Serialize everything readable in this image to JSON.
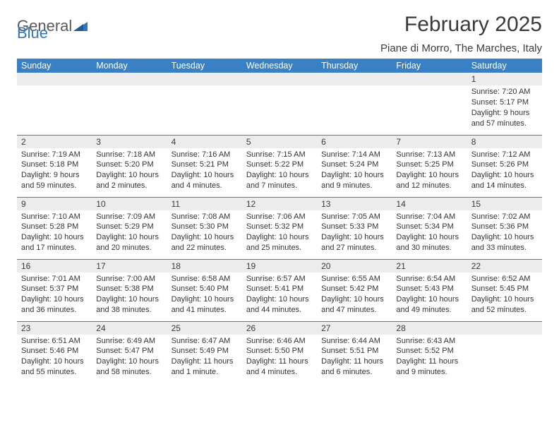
{
  "logo": {
    "text_part1": "General",
    "text_part2": "Blue",
    "gray_color": "#5a5a5a",
    "blue_color": "#2f78bd"
  },
  "header": {
    "title": "February 2025",
    "subtitle": "Piane di Morro, The Marches, Italy"
  },
  "colors": {
    "header_bg": "#3a80c4",
    "header_text": "#ffffff",
    "daybar_bg": "#ececec",
    "text": "#333333",
    "border": "#3a80c4",
    "page_bg": "#ffffff"
  },
  "weekdays": [
    "Sunday",
    "Monday",
    "Tuesday",
    "Wednesday",
    "Thursday",
    "Friday",
    "Saturday"
  ],
  "weeks": [
    [
      null,
      null,
      null,
      null,
      null,
      null,
      {
        "n": "1",
        "sr": "Sunrise: 7:20 AM",
        "ss": "Sunset: 5:17 PM",
        "dl1": "Daylight: 9 hours",
        "dl2": "and 57 minutes."
      }
    ],
    [
      {
        "n": "2",
        "sr": "Sunrise: 7:19 AM",
        "ss": "Sunset: 5:18 PM",
        "dl1": "Daylight: 9 hours",
        "dl2": "and 59 minutes."
      },
      {
        "n": "3",
        "sr": "Sunrise: 7:18 AM",
        "ss": "Sunset: 5:20 PM",
        "dl1": "Daylight: 10 hours",
        "dl2": "and 2 minutes."
      },
      {
        "n": "4",
        "sr": "Sunrise: 7:16 AM",
        "ss": "Sunset: 5:21 PM",
        "dl1": "Daylight: 10 hours",
        "dl2": "and 4 minutes."
      },
      {
        "n": "5",
        "sr": "Sunrise: 7:15 AM",
        "ss": "Sunset: 5:22 PM",
        "dl1": "Daylight: 10 hours",
        "dl2": "and 7 minutes."
      },
      {
        "n": "6",
        "sr": "Sunrise: 7:14 AM",
        "ss": "Sunset: 5:24 PM",
        "dl1": "Daylight: 10 hours",
        "dl2": "and 9 minutes."
      },
      {
        "n": "7",
        "sr": "Sunrise: 7:13 AM",
        "ss": "Sunset: 5:25 PM",
        "dl1": "Daylight: 10 hours",
        "dl2": "and 12 minutes."
      },
      {
        "n": "8",
        "sr": "Sunrise: 7:12 AM",
        "ss": "Sunset: 5:26 PM",
        "dl1": "Daylight: 10 hours",
        "dl2": "and 14 minutes."
      }
    ],
    [
      {
        "n": "9",
        "sr": "Sunrise: 7:10 AM",
        "ss": "Sunset: 5:28 PM",
        "dl1": "Daylight: 10 hours",
        "dl2": "and 17 minutes."
      },
      {
        "n": "10",
        "sr": "Sunrise: 7:09 AM",
        "ss": "Sunset: 5:29 PM",
        "dl1": "Daylight: 10 hours",
        "dl2": "and 20 minutes."
      },
      {
        "n": "11",
        "sr": "Sunrise: 7:08 AM",
        "ss": "Sunset: 5:30 PM",
        "dl1": "Daylight: 10 hours",
        "dl2": "and 22 minutes."
      },
      {
        "n": "12",
        "sr": "Sunrise: 7:06 AM",
        "ss": "Sunset: 5:32 PM",
        "dl1": "Daylight: 10 hours",
        "dl2": "and 25 minutes."
      },
      {
        "n": "13",
        "sr": "Sunrise: 7:05 AM",
        "ss": "Sunset: 5:33 PM",
        "dl1": "Daylight: 10 hours",
        "dl2": "and 27 minutes."
      },
      {
        "n": "14",
        "sr": "Sunrise: 7:04 AM",
        "ss": "Sunset: 5:34 PM",
        "dl1": "Daylight: 10 hours",
        "dl2": "and 30 minutes."
      },
      {
        "n": "15",
        "sr": "Sunrise: 7:02 AM",
        "ss": "Sunset: 5:36 PM",
        "dl1": "Daylight: 10 hours",
        "dl2": "and 33 minutes."
      }
    ],
    [
      {
        "n": "16",
        "sr": "Sunrise: 7:01 AM",
        "ss": "Sunset: 5:37 PM",
        "dl1": "Daylight: 10 hours",
        "dl2": "and 36 minutes."
      },
      {
        "n": "17",
        "sr": "Sunrise: 7:00 AM",
        "ss": "Sunset: 5:38 PM",
        "dl1": "Daylight: 10 hours",
        "dl2": "and 38 minutes."
      },
      {
        "n": "18",
        "sr": "Sunrise: 6:58 AM",
        "ss": "Sunset: 5:40 PM",
        "dl1": "Daylight: 10 hours",
        "dl2": "and 41 minutes."
      },
      {
        "n": "19",
        "sr": "Sunrise: 6:57 AM",
        "ss": "Sunset: 5:41 PM",
        "dl1": "Daylight: 10 hours",
        "dl2": "and 44 minutes."
      },
      {
        "n": "20",
        "sr": "Sunrise: 6:55 AM",
        "ss": "Sunset: 5:42 PM",
        "dl1": "Daylight: 10 hours",
        "dl2": "and 47 minutes."
      },
      {
        "n": "21",
        "sr": "Sunrise: 6:54 AM",
        "ss": "Sunset: 5:43 PM",
        "dl1": "Daylight: 10 hours",
        "dl2": "and 49 minutes."
      },
      {
        "n": "22",
        "sr": "Sunrise: 6:52 AM",
        "ss": "Sunset: 5:45 PM",
        "dl1": "Daylight: 10 hours",
        "dl2": "and 52 minutes."
      }
    ],
    [
      {
        "n": "23",
        "sr": "Sunrise: 6:51 AM",
        "ss": "Sunset: 5:46 PM",
        "dl1": "Daylight: 10 hours",
        "dl2": "and 55 minutes."
      },
      {
        "n": "24",
        "sr": "Sunrise: 6:49 AM",
        "ss": "Sunset: 5:47 PM",
        "dl1": "Daylight: 10 hours",
        "dl2": "and 58 minutes."
      },
      {
        "n": "25",
        "sr": "Sunrise: 6:47 AM",
        "ss": "Sunset: 5:49 PM",
        "dl1": "Daylight: 11 hours",
        "dl2": "and 1 minute."
      },
      {
        "n": "26",
        "sr": "Sunrise: 6:46 AM",
        "ss": "Sunset: 5:50 PM",
        "dl1": "Daylight: 11 hours",
        "dl2": "and 4 minutes."
      },
      {
        "n": "27",
        "sr": "Sunrise: 6:44 AM",
        "ss": "Sunset: 5:51 PM",
        "dl1": "Daylight: 11 hours",
        "dl2": "and 6 minutes."
      },
      {
        "n": "28",
        "sr": "Sunrise: 6:43 AM",
        "ss": "Sunset: 5:52 PM",
        "dl1": "Daylight: 11 hours",
        "dl2": "and 9 minutes."
      },
      null
    ]
  ]
}
